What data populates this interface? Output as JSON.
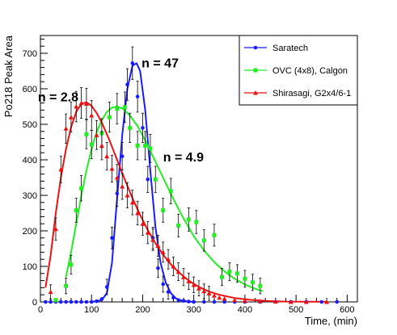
{
  "chart_data": {
    "type": "scatter",
    "title": "",
    "xlabel": "Time, (min)",
    "ylabel": "Po218 Peak Area",
    "xlim": [
      0,
      620
    ],
    "ylim": [
      0,
      750
    ],
    "x_ticks": [
      "0",
      "100",
      "200",
      "300",
      "400",
      "500",
      "600"
    ],
    "y_ticks": [
      "0",
      "100",
      "200",
      "300",
      "400",
      "500",
      "600",
      "700"
    ],
    "grid": false,
    "legend_position": "top-right",
    "annotations": [
      {
        "text": "n = 47",
        "x": 198,
        "y": 660
      },
      {
        "text": "n = 2.8",
        "x": -5,
        "y": 565
      },
      {
        "text": "n = 4.9",
        "x": 240,
        "y": 395
      }
    ],
    "series": [
      {
        "name": "Saratech",
        "color": "#1a1aff",
        "marker": "circle",
        "points": [
          {
            "x": 10,
            "y": 0
          },
          {
            "x": 20,
            "y": 0
          },
          {
            "x": 30,
            "y": 0
          },
          {
            "x": 40,
            "y": 0
          },
          {
            "x": 50,
            "y": 0
          },
          {
            "x": 60,
            "y": 0
          },
          {
            "x": 70,
            "y": 0
          },
          {
            "x": 80,
            "y": 0
          },
          {
            "x": 90,
            "y": 0
          },
          {
            "x": 100,
            "y": 0
          },
          {
            "x": 110,
            "y": 2
          },
          {
            "x": 120,
            "y": 8
          },
          {
            "x": 130,
            "y": 42
          },
          {
            "x": 140,
            "y": 180
          },
          {
            "x": 150,
            "y": 305
          },
          {
            "x": 160,
            "y": 410
          },
          {
            "x": 170,
            "y": 612
          },
          {
            "x": 180,
            "y": 672
          },
          {
            "x": 190,
            "y": 578
          },
          {
            "x": 200,
            "y": 490
          },
          {
            "x": 210,
            "y": 345
          },
          {
            "x": 220,
            "y": 180
          },
          {
            "x": 230,
            "y": 95
          },
          {
            "x": 240,
            "y": 50
          },
          {
            "x": 250,
            "y": 28
          },
          {
            "x": 260,
            "y": 12
          },
          {
            "x": 270,
            "y": 5
          },
          {
            "x": 280,
            "y": 3
          },
          {
            "x": 290,
            "y": 1
          },
          {
            "x": 300,
            "y": 0
          },
          {
            "x": 320,
            "y": 0
          },
          {
            "x": 340,
            "y": 0
          },
          {
            "x": 360,
            "y": 0
          },
          {
            "x": 380,
            "y": 0
          },
          {
            "x": 400,
            "y": 0
          },
          {
            "x": 430,
            "y": 0
          },
          {
            "x": 460,
            "y": 0
          },
          {
            "x": 490,
            "y": 0
          },
          {
            "x": 520,
            "y": 0
          },
          {
            "x": 550,
            "y": 0
          },
          {
            "x": 580,
            "y": 0
          }
        ],
        "fit": [
          {
            "x": 100,
            "y": 0
          },
          {
            "x": 120,
            "y": 5
          },
          {
            "x": 130,
            "y": 25
          },
          {
            "x": 140,
            "y": 110
          },
          {
            "x": 150,
            "y": 290
          },
          {
            "x": 160,
            "y": 470
          },
          {
            "x": 170,
            "y": 600
          },
          {
            "x": 180,
            "y": 665
          },
          {
            "x": 188,
            "y": 672
          },
          {
            "x": 195,
            "y": 650
          },
          {
            "x": 205,
            "y": 540
          },
          {
            "x": 215,
            "y": 370
          },
          {
            "x": 225,
            "y": 210
          },
          {
            "x": 235,
            "y": 110
          },
          {
            "x": 245,
            "y": 55
          },
          {
            "x": 255,
            "y": 25
          },
          {
            "x": 265,
            "y": 10
          },
          {
            "x": 275,
            "y": 4
          },
          {
            "x": 290,
            "y": 1
          },
          {
            "x": 300,
            "y": 0
          }
        ]
      },
      {
        "name": "OVC (4x8), Calgon",
        "color": "#22ee22",
        "marker": "square",
        "points": [
          {
            "x": 30,
            "y": 5
          },
          {
            "x": 50,
            "y": 45
          },
          {
            "x": 60,
            "y": 105
          },
          {
            "x": 70,
            "y": 258
          },
          {
            "x": 80,
            "y": 320
          },
          {
            "x": 90,
            "y": 472
          },
          {
            "x": 100,
            "y": 443
          },
          {
            "x": 120,
            "y": 475
          },
          {
            "x": 135,
            "y": 520
          },
          {
            "x": 150,
            "y": 544
          },
          {
            "x": 165,
            "y": 548
          },
          {
            "x": 175,
            "y": 490
          },
          {
            "x": 190,
            "y": 440
          },
          {
            "x": 205,
            "y": 440
          },
          {
            "x": 215,
            "y": 432
          },
          {
            "x": 225,
            "y": 345
          },
          {
            "x": 240,
            "y": 258
          },
          {
            "x": 255,
            "y": 312
          },
          {
            "x": 270,
            "y": 215
          },
          {
            "x": 290,
            "y": 232
          },
          {
            "x": 305,
            "y": 225
          },
          {
            "x": 320,
            "y": 173
          },
          {
            "x": 340,
            "y": 188
          },
          {
            "x": 355,
            "y": 70
          },
          {
            "x": 370,
            "y": 85
          },
          {
            "x": 385,
            "y": 80
          },
          {
            "x": 400,
            "y": 65
          },
          {
            "x": 415,
            "y": 55
          },
          {
            "x": 430,
            "y": 45
          }
        ],
        "fit": [
          {
            "x": 50,
            "y": 70
          },
          {
            "x": 60,
            "y": 140
          },
          {
            "x": 70,
            "y": 220
          },
          {
            "x": 80,
            "y": 300
          },
          {
            "x": 90,
            "y": 370
          },
          {
            "x": 100,
            "y": 430
          },
          {
            "x": 110,
            "y": 478
          },
          {
            "x": 120,
            "y": 512
          },
          {
            "x": 130,
            "y": 535
          },
          {
            "x": 140,
            "y": 547
          },
          {
            "x": 150,
            "y": 550
          },
          {
            "x": 160,
            "y": 545
          },
          {
            "x": 175,
            "y": 525
          },
          {
            "x": 190,
            "y": 495
          },
          {
            "x": 205,
            "y": 455
          },
          {
            "x": 220,
            "y": 410
          },
          {
            "x": 240,
            "y": 350
          },
          {
            "x": 260,
            "y": 290
          },
          {
            "x": 280,
            "y": 235
          },
          {
            "x": 300,
            "y": 185
          },
          {
            "x": 320,
            "y": 145
          },
          {
            "x": 340,
            "y": 112
          },
          {
            "x": 360,
            "y": 86
          },
          {
            "x": 380,
            "y": 65
          },
          {
            "x": 400,
            "y": 49
          },
          {
            "x": 420,
            "y": 37
          },
          {
            "x": 435,
            "y": 30
          }
        ]
      },
      {
        "name": "Shirasagi, G2x4/6-1",
        "color": "#ee1111",
        "marker": "triangle",
        "points": [
          {
            "x": 20,
            "y": 28
          },
          {
            "x": 30,
            "y": 205
          },
          {
            "x": 40,
            "y": 373
          },
          {
            "x": 50,
            "y": 488
          },
          {
            "x": 60,
            "y": 520
          },
          {
            "x": 70,
            "y": 550
          },
          {
            "x": 80,
            "y": 560
          },
          {
            "x": 90,
            "y": 558
          },
          {
            "x": 100,
            "y": 525
          },
          {
            "x": 110,
            "y": 470
          },
          {
            "x": 120,
            "y": 440
          },
          {
            "x": 130,
            "y": 410
          },
          {
            "x": 140,
            "y": 375
          },
          {
            "x": 150,
            "y": 350
          },
          {
            "x": 160,
            "y": 325
          },
          {
            "x": 170,
            "y": 300
          },
          {
            "x": 180,
            "y": 280
          },
          {
            "x": 190,
            "y": 250
          },
          {
            "x": 200,
            "y": 220
          },
          {
            "x": 210,
            "y": 195
          },
          {
            "x": 220,
            "y": 175
          },
          {
            "x": 230,
            "y": 158
          },
          {
            "x": 240,
            "y": 140
          },
          {
            "x": 250,
            "y": 120
          },
          {
            "x": 260,
            "y": 100
          },
          {
            "x": 270,
            "y": 85
          },
          {
            "x": 280,
            "y": 70
          },
          {
            "x": 290,
            "y": 58
          },
          {
            "x": 300,
            "y": 48
          },
          {
            "x": 310,
            "y": 38
          },
          {
            "x": 320,
            "y": 30
          },
          {
            "x": 330,
            "y": 24
          },
          {
            "x": 340,
            "y": 18
          },
          {
            "x": 350,
            "y": 12
          },
          {
            "x": 360,
            "y": 9
          },
          {
            "x": 380,
            "y": 5
          },
          {
            "x": 400,
            "y": 3
          },
          {
            "x": 430,
            "y": 2
          },
          {
            "x": 460,
            "y": 1
          },
          {
            "x": 490,
            "y": 0
          },
          {
            "x": 520,
            "y": 0
          },
          {
            "x": 560,
            "y": 0
          }
        ],
        "fit": [
          {
            "x": 10,
            "y": 40
          },
          {
            "x": 20,
            "y": 130
          },
          {
            "x": 30,
            "y": 250
          },
          {
            "x": 40,
            "y": 350
          },
          {
            "x": 50,
            "y": 430
          },
          {
            "x": 60,
            "y": 492
          },
          {
            "x": 70,
            "y": 535
          },
          {
            "x": 80,
            "y": 558
          },
          {
            "x": 90,
            "y": 562
          },
          {
            "x": 100,
            "y": 552
          },
          {
            "x": 110,
            "y": 532
          },
          {
            "x": 120,
            "y": 505
          },
          {
            "x": 135,
            "y": 455
          },
          {
            "x": 150,
            "y": 400
          },
          {
            "x": 165,
            "y": 345
          },
          {
            "x": 180,
            "y": 292
          },
          {
            "x": 195,
            "y": 245
          },
          {
            "x": 210,
            "y": 202
          },
          {
            "x": 225,
            "y": 165
          },
          {
            "x": 240,
            "y": 133
          },
          {
            "x": 255,
            "y": 106
          },
          {
            "x": 270,
            "y": 84
          },
          {
            "x": 290,
            "y": 60
          },
          {
            "x": 310,
            "y": 42
          },
          {
            "x": 330,
            "y": 29
          },
          {
            "x": 350,
            "y": 20
          },
          {
            "x": 380,
            "y": 11
          },
          {
            "x": 410,
            "y": 6
          },
          {
            "x": 440,
            "y": 3
          },
          {
            "x": 480,
            "y": 1
          },
          {
            "x": 520,
            "y": 0.5
          },
          {
            "x": 560,
            "y": 0.2
          }
        ]
      }
    ]
  }
}
